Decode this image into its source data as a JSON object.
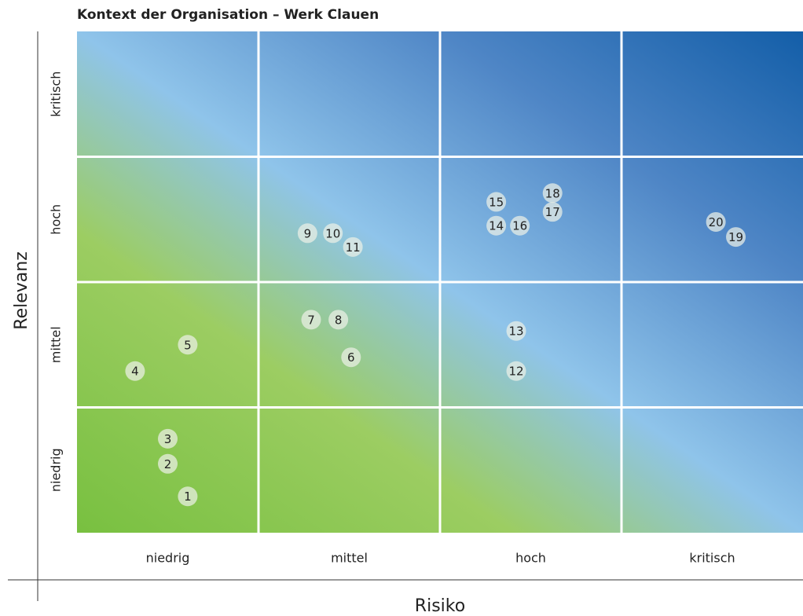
{
  "chart_data": {
    "type": "scatter",
    "title": "Kontext der Organisation – Werk Clauen",
    "x_label": "Risiko",
    "y_label": "Relevanz",
    "x_categories": [
      "niedrig",
      "mittel",
      "hoch",
      "kritisch"
    ],
    "y_categories": [
      "niedrig",
      "mittel",
      "hoch",
      "kritisch"
    ],
    "xlim": [
      0,
      4
    ],
    "ylim": [
      0,
      4
    ],
    "labels": [
      1,
      2,
      3,
      4,
      5,
      6,
      7,
      8,
      9,
      10,
      11,
      12,
      13,
      14,
      15,
      16,
      17,
      18,
      19,
      20
    ],
    "x": [
      0.61,
      0.5,
      0.5,
      0.32,
      0.61,
      1.51,
      1.29,
      1.44,
      1.27,
      1.41,
      1.52,
      2.42,
      2.42,
      2.31,
      2.31,
      2.44,
      2.62,
      2.62,
      3.63,
      3.52
    ],
    "y": [
      0.29,
      0.55,
      0.75,
      1.29,
      1.5,
      1.4,
      1.7,
      1.7,
      2.39,
      2.39,
      2.28,
      1.29,
      1.61,
      2.45,
      2.64,
      2.45,
      2.56,
      2.71,
      2.36,
      2.48
    ],
    "grid": true
  }
}
